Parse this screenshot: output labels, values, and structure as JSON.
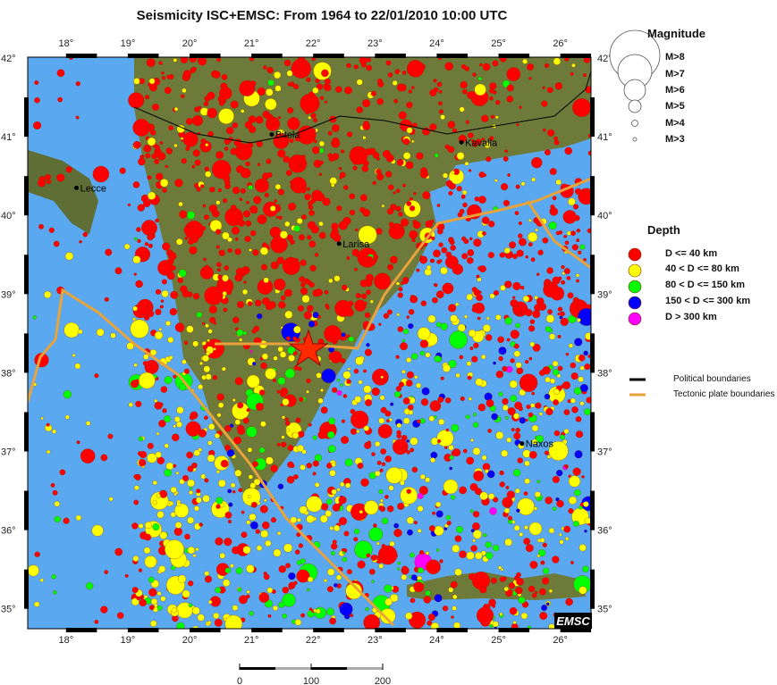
{
  "title": "Seismicity ISC+EMSC: From 1964 to 22/01/2010 10:00 UTC",
  "map": {
    "lon_range": [
      17.38,
      26.52
    ],
    "lat_range": [
      34.74,
      42.0
    ],
    "lon_ticks": [
      "18°",
      "19°",
      "20°",
      "21°",
      "22°",
      "23°",
      "24°",
      "25°",
      "26°"
    ],
    "lat_ticks": [
      "42°",
      "41°",
      "40°",
      "39°",
      "38°",
      "37°",
      "36°",
      "35°"
    ],
    "cities": [
      {
        "name": "Lecce",
        "lon": 18.17,
        "lat": 40.35
      },
      {
        "name": "Bitola",
        "lon": 21.33,
        "lat": 41.03
      },
      {
        "name": "Kavalla",
        "lon": 24.4,
        "lat": 40.93
      },
      {
        "name": "Larisa",
        "lon": 22.42,
        "lat": 39.64
      },
      {
        "name": "Naxos",
        "lon": 25.38,
        "lat": 37.1
      }
    ],
    "main_event": {
      "lon": 22.0,
      "lat": 38.4,
      "icon": "star-icon"
    },
    "logo": "EMSC",
    "colors": {
      "sea": "#5aa8f0",
      "land": "#6e7a3a",
      "political": "#000000",
      "tectonic": "#e8a33a"
    }
  },
  "legend": {
    "magnitude_title": "Magnitude",
    "magnitudes": [
      "M>8",
      "M>7",
      "M>6",
      "M>5",
      "M>4",
      "M>3"
    ],
    "depth_title": "Depth",
    "depths": [
      {
        "label": "D <= 40 km",
        "color": "#ff0000"
      },
      {
        "label": "40 < D <= 80 km",
        "color": "#ffff00"
      },
      {
        "label": "80 < D <= 150 km",
        "color": "#00ff00"
      },
      {
        "label": "150 < D <= 300 km",
        "color": "#0000ff"
      },
      {
        "label": "D > 300 km",
        "color": "#ff00ff"
      }
    ],
    "lines": [
      {
        "label": "Political boundaries",
        "color": "#000000"
      },
      {
        "label": "Tectonic plate boundaries",
        "color": "#e8a33a"
      }
    ]
  },
  "scale_bar": {
    "labels": [
      "0",
      "100",
      "200"
    ]
  }
}
